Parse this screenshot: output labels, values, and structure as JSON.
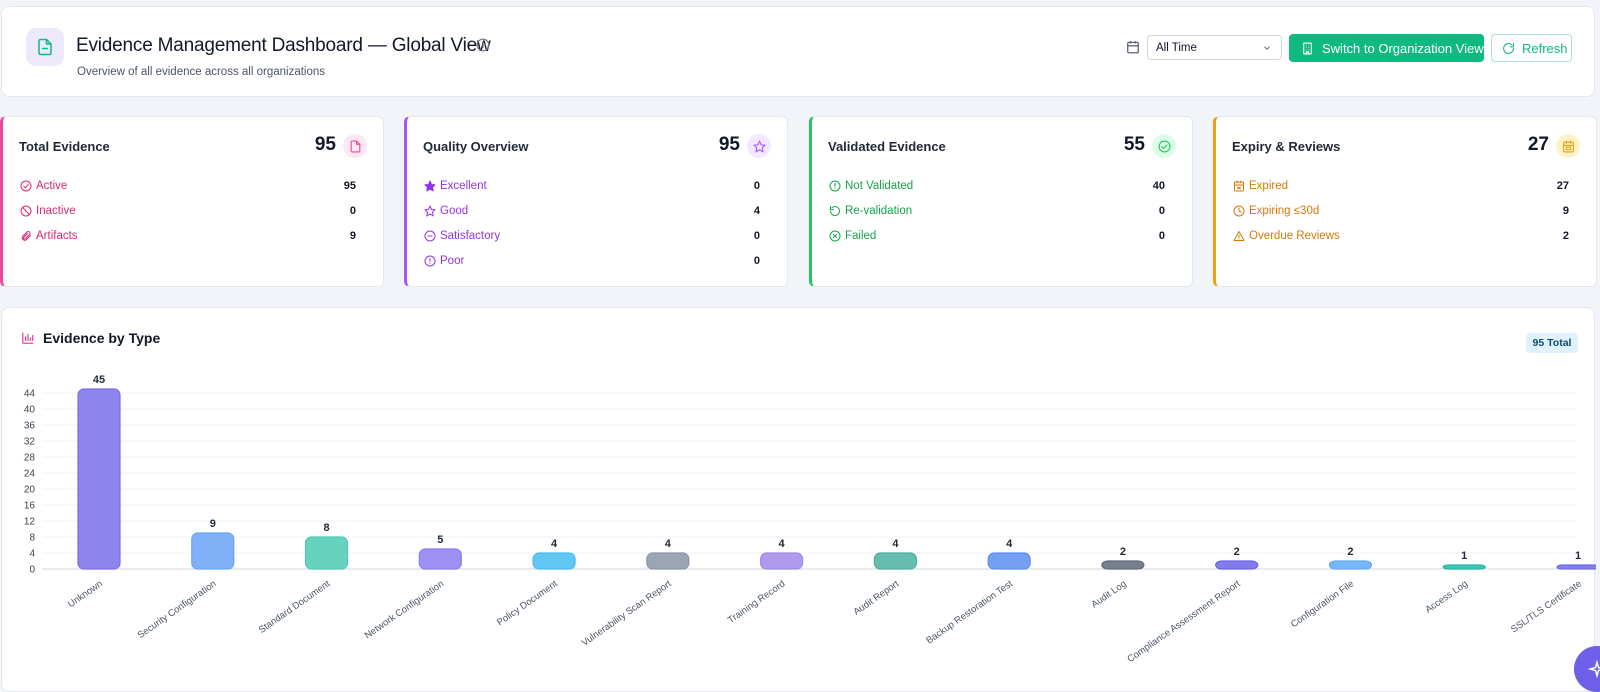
{
  "header": {
    "title": "Evidence Management Dashboard — Global View",
    "subtitle": "Overview of all evidence across all organizations",
    "date_filter": "All Time",
    "switch_button": "Switch to Organization View",
    "refresh_button": "Refresh"
  },
  "cards": [
    {
      "title": "Total Evidence",
      "total": "95",
      "accent": "#ec4899",
      "badge_bg": "#fce7f3",
      "icon": "file-icon",
      "rows": [
        {
          "label": "Active",
          "value": "95",
          "icon": "check-circle-icon"
        },
        {
          "label": "Inactive",
          "value": "0",
          "icon": "ban-icon"
        },
        {
          "label": "Artifacts",
          "value": "9",
          "icon": "paperclip-icon"
        }
      ]
    },
    {
      "title": "Quality Overview",
      "total": "95",
      "accent": "#a855f7",
      "badge_bg": "#f3e8ff",
      "icon": "star-icon",
      "rows": [
        {
          "label": "Excellent",
          "value": "0",
          "icon": "star-filled-icon"
        },
        {
          "label": "Good",
          "value": "4",
          "icon": "star-outline-icon"
        },
        {
          "label": "Satisfactory",
          "value": "0",
          "icon": "minus-circle-icon"
        },
        {
          "label": "Poor",
          "value": "0",
          "icon": "alert-circle-icon"
        }
      ]
    },
    {
      "title": "Validated Evidence",
      "total": "55",
      "accent": "#22c55e",
      "badge_bg": "#dcfce7",
      "icon": "check-circle-icon",
      "rows": [
        {
          "label": "Not Validated",
          "value": "40",
          "icon": "alert-circle-icon"
        },
        {
          "label": "Re-validation",
          "value": "0",
          "icon": "rotate-icon"
        },
        {
          "label": "Failed",
          "value": "0",
          "icon": "x-circle-icon"
        }
      ]
    },
    {
      "title": "Expiry & Reviews",
      "total": "27",
      "accent": "#f59e0b",
      "badge_bg": "#fef3c7",
      "icon": "calendar-icon",
      "rows": [
        {
          "label": "Expired",
          "value": "27",
          "icon": "calendar-x-icon"
        },
        {
          "label": "Expiring ≤30d",
          "value": "9",
          "icon": "clock-icon"
        },
        {
          "label": "Overdue Reviews",
          "value": "2",
          "icon": "warning-icon"
        }
      ]
    }
  ],
  "chart": {
    "title": "Evidence by Type",
    "total_badge": "95 Total"
  },
  "chart_data": {
    "type": "bar",
    "title": "Evidence by Type",
    "categories": [
      "Unknown",
      "Security Configuration",
      "Standard Document",
      "Network Configuration",
      "Policy Document",
      "Vulnerability Scan Report",
      "Training Record",
      "Audit Report",
      "Backup Restoration Test",
      "Audit Log",
      "Compliance Assessment Report",
      "Configuration File",
      "Access Log",
      "SSL/TLS Certificate"
    ],
    "values": [
      45,
      9,
      8,
      5,
      4,
      4,
      4,
      4,
      4,
      2,
      2,
      2,
      1,
      1
    ],
    "colors": [
      "#7b6ee9",
      "#6aa3f7",
      "#4ccbb4",
      "#8b7cf0",
      "#45bdf0",
      "#8a95a8",
      "#a08ae8",
      "#4bb09f",
      "#5b8ff0",
      "#606a7a",
      "#6d63ea",
      "#62a9f7",
      "#22b8a6",
      "#6f6ae8"
    ],
    "ylim": [
      0,
      44
    ],
    "yticks": [
      0,
      4,
      8,
      12,
      16,
      20,
      24,
      28,
      32,
      36,
      40,
      44
    ],
    "grid": true
  }
}
